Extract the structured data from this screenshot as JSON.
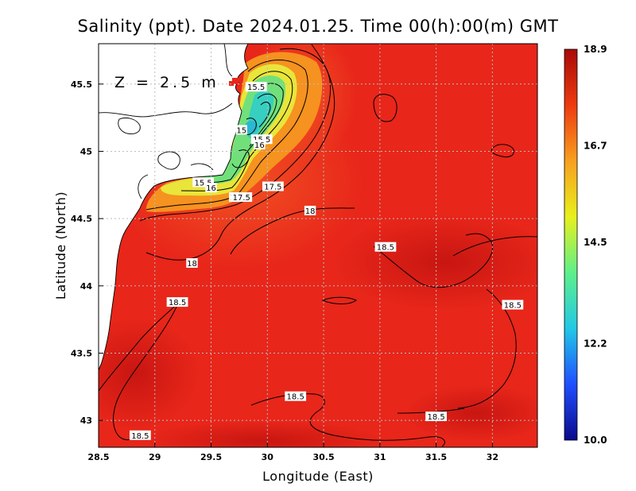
{
  "title": "Salinity (ppt). Date 2024.01.25. Time 00(h):00(m) GMT",
  "depth_label": "Z = 2.5 m",
  "x_axis": {
    "label": "Longitude (East)",
    "ticks": [
      {
        "v": 28.5,
        "t": "28.5"
      },
      {
        "v": 29,
        "t": "29"
      },
      {
        "v": 29.5,
        "t": "29.5"
      },
      {
        "v": 30,
        "t": "30"
      },
      {
        "v": 30.5,
        "t": "30.5"
      },
      {
        "v": 31,
        "t": "31"
      },
      {
        "v": 31.5,
        "t": "31.5"
      },
      {
        "v": 32,
        "t": "32"
      }
    ]
  },
  "y_axis": {
    "label": "Latitude (North)",
    "ticks": [
      {
        "v": 43,
        "t": "43"
      },
      {
        "v": 43.5,
        "t": "43.5"
      },
      {
        "v": 44,
        "t": "44"
      },
      {
        "v": 44.5,
        "t": "44.5"
      },
      {
        "v": 45,
        "t": "45"
      },
      {
        "v": 45.5,
        "t": "45.5"
      }
    ]
  },
  "colorbar": {
    "labels": [
      {
        "v": 10.0,
        "t": "10.0"
      },
      {
        "v": 12.2,
        "t": "12.2"
      },
      {
        "v": 14.5,
        "t": "14.5"
      },
      {
        "v": 16.7,
        "t": "16.7"
      },
      {
        "v": 18.9,
        "t": "18.9"
      }
    ],
    "colors": [
      "#0a0a8c",
      "#1f4fff",
      "#22c8e6",
      "#5ef08a",
      "#e8f01c",
      "#f7a020",
      "#ee3a10",
      "#a80a08"
    ]
  },
  "colors": {
    "sea": "#e8261a",
    "land": "#ffffff",
    "plume_orange": "#f6921f",
    "plume_yellow": "#e9e53a",
    "plume_green": "#71e07a",
    "plume_cyan": "#36cfc0"
  },
  "contour_labels": [
    {
      "lon": 29.9,
      "lat": 45.48,
      "t": "15.5"
    },
    {
      "lon": 29.77,
      "lat": 45.16,
      "t": "15"
    },
    {
      "lon": 29.95,
      "lat": 45.09,
      "t": "15.5"
    },
    {
      "lon": 29.93,
      "lat": 45.05,
      "t": "16"
    },
    {
      "lon": 29.43,
      "lat": 44.77,
      "t": "15.5"
    },
    {
      "lon": 29.5,
      "lat": 44.73,
      "t": "16"
    },
    {
      "lon": 29.71,
      "lat": 44.66,
      "t": "17"
    },
    {
      "lon": 29.77,
      "lat": 44.66,
      "t": "17.5"
    },
    {
      "lon": 30.05,
      "lat": 44.74,
      "t": "17.5"
    },
    {
      "lon": 30.38,
      "lat": 44.56,
      "t": "18"
    },
    {
      "lon": 29.33,
      "lat": 44.17,
      "t": "18"
    },
    {
      "lon": 29.2,
      "lat": 43.88,
      "t": "18.5"
    },
    {
      "lon": 31.05,
      "lat": 44.29,
      "t": "18.5"
    },
    {
      "lon": 32.18,
      "lat": 43.86,
      "t": "18.5"
    },
    {
      "lon": 30.25,
      "lat": 43.18,
      "t": "18.5"
    },
    {
      "lon": 31.5,
      "lat": 43.03,
      "t": "18.5"
    },
    {
      "lon": 28.87,
      "lat": 42.89,
      "t": "18.5"
    }
  ]
}
